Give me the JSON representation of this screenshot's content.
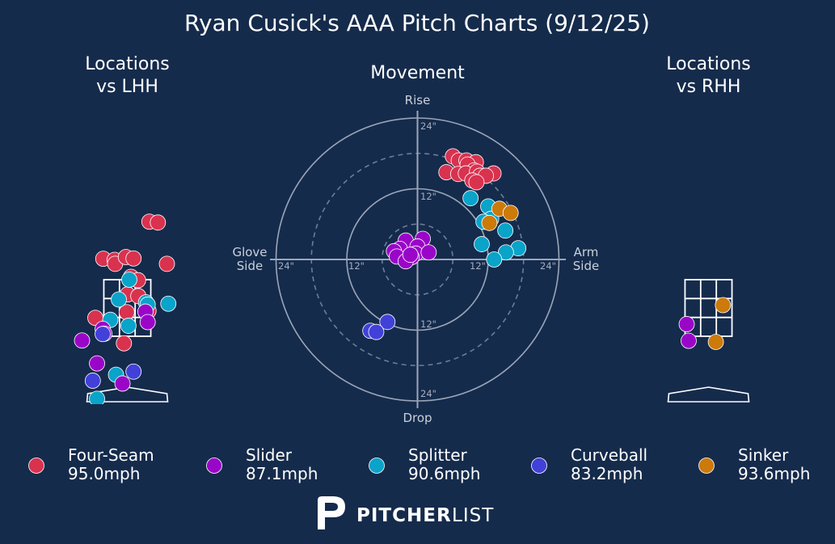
{
  "title": "Ryan Cusick's AAA Pitch Charts (9/12/25)",
  "brand": {
    "mark": "P",
    "strong": "PITCHER",
    "light": "LIST"
  },
  "colors": {
    "background": "#152b4c",
    "Four-Seam": "#d9324f",
    "Slider": "#9a06c8",
    "Splitter": "#0aa3c9",
    "Curveball": "#4141d9",
    "Sinker": "#cc7a0a"
  },
  "chart_data": [
    {
      "type": "scatter",
      "title": "Locations\nvs LHH",
      "subject": "pitch locations vs left-handed hitters",
      "xlim": [
        -3.2,
        3.2
      ],
      "ylim": [
        -0.9,
        6.0
      ],
      "units": "feet (catcher view)",
      "strike_zone": {
        "x": [
          -0.83,
          0.83
        ],
        "y": [
          1.5,
          3.5
        ],
        "grid": "3x3"
      },
      "points": [
        {
          "pitch": "Four-Seam",
          "x": 0.78,
          "y": 5.55
        },
        {
          "pitch": "Four-Seam",
          "x": 1.08,
          "y": 5.52
        },
        {
          "pitch": "Four-Seam",
          "x": -0.85,
          "y": 4.24
        },
        {
          "pitch": "Four-Seam",
          "x": -0.45,
          "y": 4.2
        },
        {
          "pitch": "Four-Seam",
          "x": -0.43,
          "y": 4.06
        },
        {
          "pitch": "Four-Seam",
          "x": -0.05,
          "y": 4.3
        },
        {
          "pitch": "Four-Seam",
          "x": 0.22,
          "y": 4.25
        },
        {
          "pitch": "Four-Seam",
          "x": 0.13,
          "y": 3.6
        },
        {
          "pitch": "Four-Seam",
          "x": 0.38,
          "y": 3.48
        },
        {
          "pitch": "Four-Seam",
          "x": 1.4,
          "y": 4.06
        },
        {
          "pitch": "Four-Seam",
          "x": 0.01,
          "y": 2.98
        },
        {
          "pitch": "Four-Seam",
          "x": 0.39,
          "y": 2.92
        },
        {
          "pitch": "Four-Seam",
          "x": 0.75,
          "y": 2.4
        },
        {
          "pitch": "Four-Seam",
          "x": -0.02,
          "y": 2.35
        },
        {
          "pitch": "Four-Seam",
          "x": -1.13,
          "y": 2.15
        },
        {
          "pitch": "Four-Seam",
          "x": -0.12,
          "y": 1.25
        },
        {
          "pitch": "Splitter",
          "x": 0.07,
          "y": 3.5
        },
        {
          "pitch": "Splitter",
          "x": -0.3,
          "y": 2.8
        },
        {
          "pitch": "Splitter",
          "x": 0.66,
          "y": 2.7
        },
        {
          "pitch": "Splitter",
          "x": 0.72,
          "y": 2.62
        },
        {
          "pitch": "Splitter",
          "x": 1.45,
          "y": 2.65
        },
        {
          "pitch": "Splitter",
          "x": -0.6,
          "y": 2.08
        },
        {
          "pitch": "Splitter",
          "x": 0.04,
          "y": 1.87
        },
        {
          "pitch": "Splitter",
          "x": -0.4,
          "y": 0.14
        },
        {
          "pitch": "Splitter",
          "x": -1.07,
          "y": -0.71
        },
        {
          "pitch": "Slider",
          "x": 0.64,
          "y": 2.37
        },
        {
          "pitch": "Slider",
          "x": 0.72,
          "y": 2.0
        },
        {
          "pitch": "Slider",
          "x": -0.87,
          "y": 1.76
        },
        {
          "pitch": "Slider",
          "x": -0.81,
          "y": 1.59
        },
        {
          "pitch": "Slider",
          "x": -1.07,
          "y": 0.54
        },
        {
          "pitch": "Slider",
          "x": -0.17,
          "y": -0.17
        },
        {
          "pitch": "Slider",
          "x": -1.6,
          "y": 1.35
        },
        {
          "pitch": "Curveball",
          "x": -0.87,
          "y": 1.58
        },
        {
          "pitch": "Curveball",
          "x": 0.22,
          "y": 0.25
        },
        {
          "pitch": "Curveball",
          "x": -1.22,
          "y": -0.07
        }
      ]
    },
    {
      "type": "scatter",
      "coordinate_system": "polar",
      "title": "Movement",
      "axis_labels": {
        "top": "Rise",
        "bottom": "Drop",
        "left": "Glove\nSide",
        "right": "Arm\nSide"
      },
      "ring_values_in": [
        6,
        12,
        18,
        24
      ],
      "ring_labels": [
        "12\"",
        "24\""
      ],
      "units": "inches",
      "xlim": [
        -24,
        24
      ],
      "ylim": [
        -24,
        24
      ],
      "points": [
        {
          "pitch": "Four-Seam",
          "x": 6,
          "y": 17.5
        },
        {
          "pitch": "Four-Seam",
          "x": 7,
          "y": 16.8
        },
        {
          "pitch": "Four-Seam",
          "x": 8.3,
          "y": 16.8
        },
        {
          "pitch": "Four-Seam",
          "x": 9.9,
          "y": 16.5
        },
        {
          "pitch": "Four-Seam",
          "x": 8.5,
          "y": 16.1
        },
        {
          "pitch": "Four-Seam",
          "x": 9.6,
          "y": 15.1
        },
        {
          "pitch": "Four-Seam",
          "x": 4.9,
          "y": 14.8
        },
        {
          "pitch": "Four-Seam",
          "x": 6.9,
          "y": 14.5
        },
        {
          "pitch": "Four-Seam",
          "x": 8.2,
          "y": 14.6
        },
        {
          "pitch": "Four-Seam",
          "x": 10.1,
          "y": 14.9
        },
        {
          "pitch": "Four-Seam",
          "x": 10.6,
          "y": 14.2
        },
        {
          "pitch": "Four-Seam",
          "x": 12.9,
          "y": 14.6
        },
        {
          "pitch": "Four-Seam",
          "x": 11.6,
          "y": 14.2
        },
        {
          "pitch": "Four-Seam",
          "x": 9.3,
          "y": 13.4
        },
        {
          "pitch": "Four-Seam",
          "x": 10.0,
          "y": 13.1
        },
        {
          "pitch": "Slider",
          "x": 0.9,
          "y": 3.5
        },
        {
          "pitch": "Slider",
          "x": -2,
          "y": 3.2
        },
        {
          "pitch": "Slider",
          "x": -3,
          "y": 1.8
        },
        {
          "pitch": "Slider",
          "x": 0,
          "y": 2.2
        },
        {
          "pitch": "Slider",
          "x": -0.3,
          "y": 1.0
        },
        {
          "pitch": "Slider",
          "x": 1.9,
          "y": 1.2
        },
        {
          "pitch": "Slider",
          "x": -4.0,
          "y": 1.4
        },
        {
          "pitch": "Slider",
          "x": -3.5,
          "y": 0.5
        },
        {
          "pitch": "Slider",
          "x": -1.0,
          "y": 0.4
        },
        {
          "pitch": "Slider",
          "x": -2.0,
          "y": -0.3
        },
        {
          "pitch": "Slider",
          "x": -1.2,
          "y": 0.8
        },
        {
          "pitch": "Splitter",
          "x": 9.0,
          "y": 10.4
        },
        {
          "pitch": "Splitter",
          "x": 12.0,
          "y": 9.0
        },
        {
          "pitch": "Splitter",
          "x": 12.5,
          "y": 6.9
        },
        {
          "pitch": "Splitter",
          "x": 11.2,
          "y": 6.4
        },
        {
          "pitch": "Splitter",
          "x": 14.9,
          "y": 4.9
        },
        {
          "pitch": "Splitter",
          "x": 10.9,
          "y": 2.6
        },
        {
          "pitch": "Splitter",
          "x": 17.1,
          "y": 1.9
        },
        {
          "pitch": "Splitter",
          "x": 15.0,
          "y": 1.2
        },
        {
          "pitch": "Splitter",
          "x": 13.0,
          "y": 0.0
        },
        {
          "pitch": "Curveball",
          "x": -5.1,
          "y": -10.6
        },
        {
          "pitch": "Curveball",
          "x": -8.0,
          "y": -12.1
        },
        {
          "pitch": "Curveball",
          "x": -7.0,
          "y": -12.3
        },
        {
          "pitch": "Sinker",
          "x": 13.9,
          "y": 8.6
        },
        {
          "pitch": "Sinker",
          "x": 15.8,
          "y": 7.9
        },
        {
          "pitch": "Sinker",
          "x": 12.2,
          "y": 6.2
        }
      ]
    },
    {
      "type": "scatter",
      "title": "Locations\nvs RHH",
      "subject": "pitch locations vs right-handed hitters",
      "xlim": [
        -3.2,
        3.2
      ],
      "ylim": [
        -0.9,
        6.0
      ],
      "units": "feet (catcher view)",
      "strike_zone": {
        "x": [
          -0.83,
          0.83
        ],
        "y": [
          1.5,
          3.5
        ],
        "grid": "3x3"
      },
      "points": [
        {
          "pitch": "Sinker",
          "x": 0.51,
          "y": 2.6
        },
        {
          "pitch": "Slider",
          "x": -0.77,
          "y": 1.93
        },
        {
          "pitch": "Slider",
          "x": -0.7,
          "y": 1.34
        },
        {
          "pitch": "Sinker",
          "x": 0.26,
          "y": 1.3
        }
      ]
    }
  ],
  "legend": [
    {
      "pitch": "Four-Seam",
      "name": "Four-Seam",
      "velo": "95.0mph"
    },
    {
      "pitch": "Slider",
      "name": "Slider",
      "velo": "87.1mph"
    },
    {
      "pitch": "Splitter",
      "name": "Splitter",
      "velo": "90.6mph"
    },
    {
      "pitch": "Curveball",
      "name": "Curveball",
      "velo": "83.2mph"
    },
    {
      "pitch": "Sinker",
      "name": "Sinker",
      "velo": "93.6mph"
    }
  ]
}
